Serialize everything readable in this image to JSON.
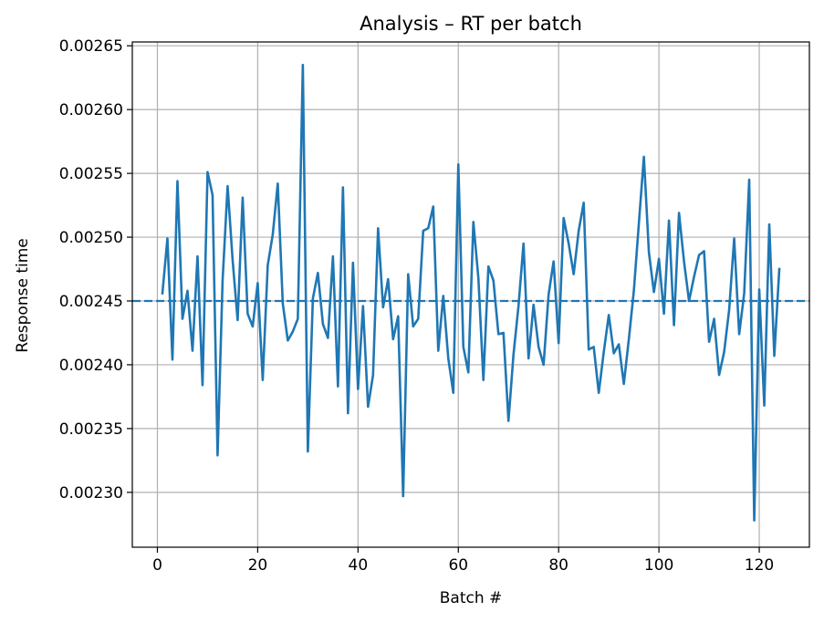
{
  "chart_data": {
    "type": "line",
    "title": "Analysis – RT per batch",
    "xlabel": "Batch #",
    "ylabel": "Response time",
    "xlim": [
      -5,
      130
    ],
    "ylim": [
      0.002257,
      0.002653
    ],
    "xticks": [
      0,
      20,
      40,
      60,
      80,
      100,
      120
    ],
    "yticks": [
      0.0023,
      0.00235,
      0.0024,
      0.00245,
      0.0025,
      0.00255,
      0.0026,
      0.00265
    ],
    "ytick_labels": [
      "0.00230",
      "0.00235",
      "0.00240",
      "0.00245",
      "0.00250",
      "0.00255",
      "0.00260",
      "0.00265"
    ],
    "grid": true,
    "series": [
      {
        "color": "#1f77b4",
        "x": [
          1,
          2,
          3,
          4,
          5,
          6,
          7,
          8,
          9,
          10,
          11,
          12,
          13,
          14,
          15,
          16,
          17,
          18,
          19,
          20,
          21,
          22,
          23,
          24,
          25,
          26,
          27,
          28,
          29,
          30,
          31,
          32,
          33,
          34,
          35,
          36,
          37,
          38,
          39,
          40,
          41,
          42,
          43,
          44,
          45,
          46,
          47,
          48,
          49,
          50,
          51,
          52,
          53,
          54,
          55,
          56,
          57,
          58,
          59,
          60,
          61,
          62,
          63,
          64,
          65,
          66,
          67,
          68,
          69,
          70,
          71,
          72,
          73,
          74,
          75,
          76,
          77,
          78,
          79,
          80,
          81,
          82,
          83,
          84,
          85,
          86,
          87,
          88,
          89,
          90,
          91,
          92,
          93,
          94,
          95,
          96,
          97,
          98,
          99,
          100,
          101,
          102,
          103,
          104,
          105,
          106,
          107,
          108,
          109,
          110,
          111,
          112,
          113,
          114,
          115,
          116,
          117,
          118,
          119,
          120,
          121,
          122,
          123,
          124
        ],
        "y": [
          0.002456,
          0.002499,
          0.002404,
          0.002544,
          0.002436,
          0.002458,
          0.002411,
          0.002485,
          0.002384,
          0.002551,
          0.002533,
          0.002329,
          0.002466,
          0.00254,
          0.002482,
          0.002435,
          0.002531,
          0.00244,
          0.00243,
          0.002464,
          0.002388,
          0.002478,
          0.002502,
          0.002542,
          0.002448,
          0.002419,
          0.002426,
          0.002436,
          0.002635,
          0.002332,
          0.002452,
          0.002472,
          0.002432,
          0.002421,
          0.002485,
          0.002383,
          0.002539,
          0.002362,
          0.00248,
          0.002381,
          0.002446,
          0.002367,
          0.002392,
          0.002507,
          0.002445,
          0.002467,
          0.00242,
          0.002438,
          0.002297,
          0.002471,
          0.00243,
          0.002436,
          0.002505,
          0.002507,
          0.002524,
          0.002411,
          0.002454,
          0.002405,
          0.002378,
          0.002557,
          0.002414,
          0.002394,
          0.002512,
          0.002468,
          0.002388,
          0.002477,
          0.002466,
          0.002424,
          0.002425,
          0.002356,
          0.002408,
          0.002446,
          0.002495,
          0.002405,
          0.002447,
          0.002414,
          0.0024,
          0.002455,
          0.002481,
          0.002417,
          0.002515,
          0.002495,
          0.002471,
          0.002505,
          0.002527,
          0.002412,
          0.002414,
          0.002378,
          0.00241,
          0.002439,
          0.002409,
          0.002416,
          0.002385,
          0.00242,
          0.002458,
          0.002511,
          0.002563,
          0.002488,
          0.002457,
          0.002483,
          0.00244,
          0.002513,
          0.002431,
          0.002519,
          0.002481,
          0.00245,
          0.002469,
          0.002486,
          0.002489,
          0.002418,
          0.002436,
          0.002392,
          0.00241,
          0.002443,
          0.002499,
          0.002424,
          0.002456,
          0.002545,
          0.002278,
          0.002459,
          0.002368,
          0.00251,
          0.002407,
          0.002475
        ]
      }
    ],
    "reference_line": {
      "y": 0.00245,
      "style": "dashed",
      "color": "#1f77b4"
    }
  }
}
